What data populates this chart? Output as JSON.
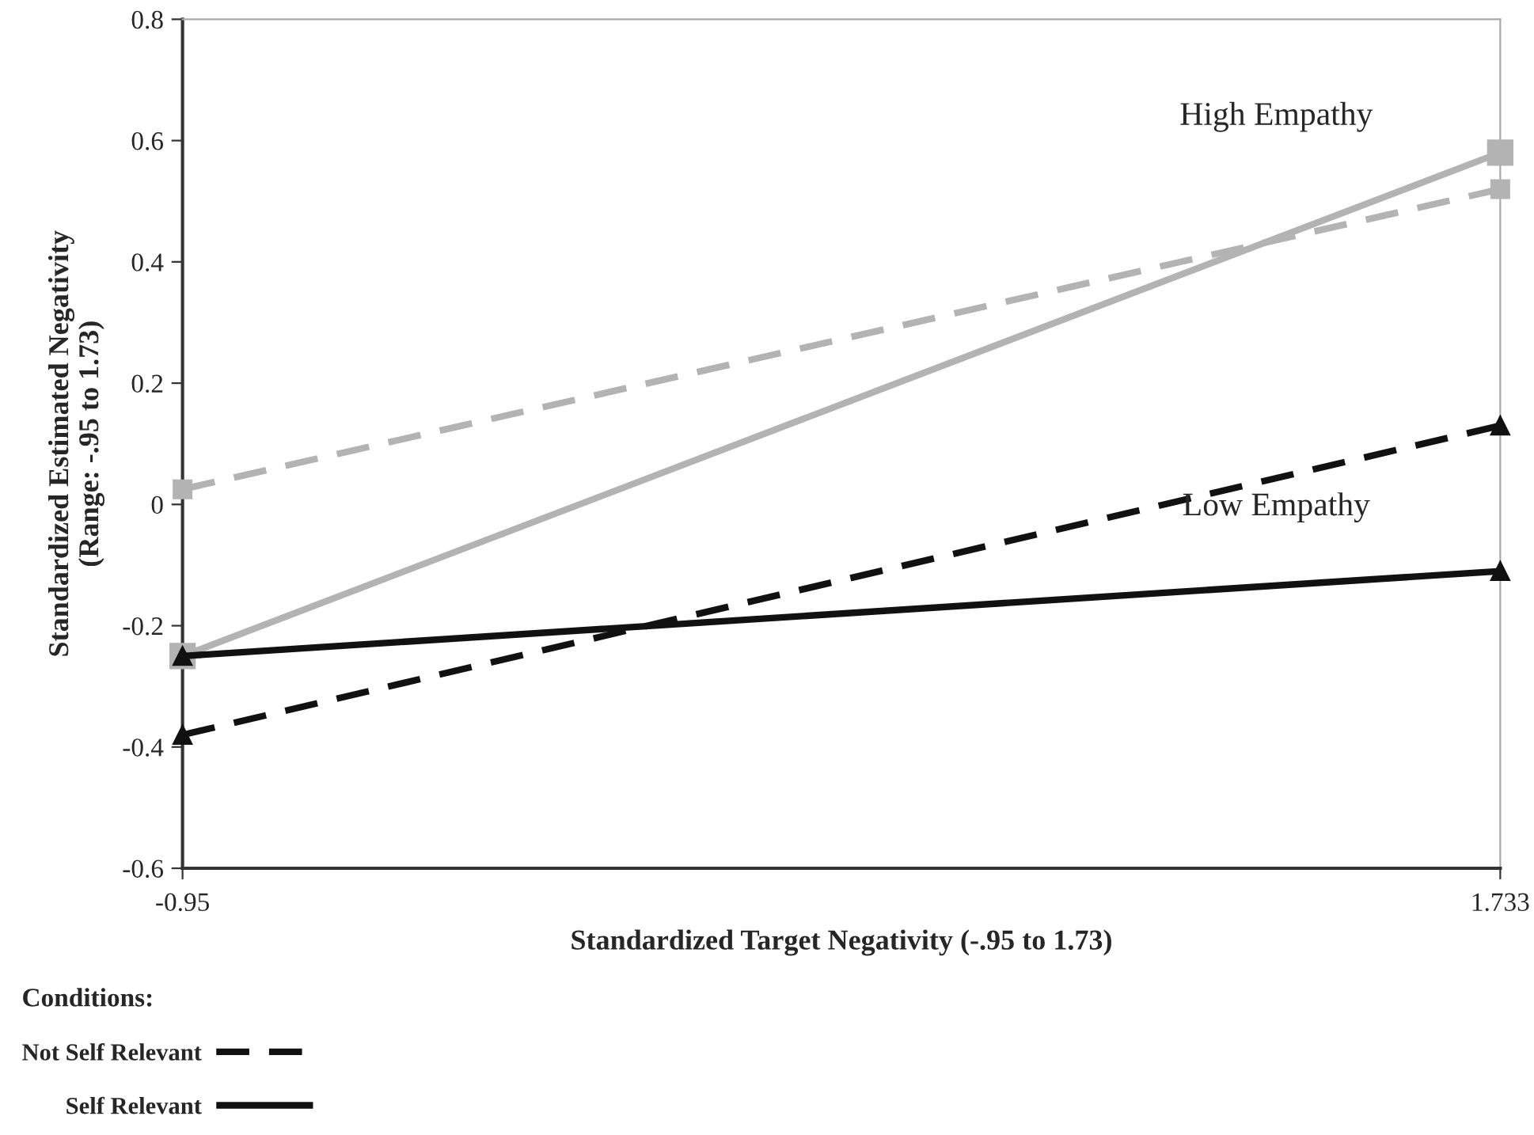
{
  "chart_data": {
    "type": "line",
    "xlabel": "Standardized Target Negativity (-.95 to 1.73)",
    "ylabel": "Standardized Estimated Negativity\n(Range: -.95 to 1.73)",
    "x": [
      -0.95,
      1.733
    ],
    "series": [
      {
        "color": "#b3b3b3",
        "values": [
          0.025,
          0.52
        ],
        "line_style": "dashed",
        "marker": "square"
      },
      {
        "color": "#b3b3b3",
        "values": [
          -0.25,
          0.58
        ],
        "line_style": "solid",
        "marker": "square"
      },
      {
        "name": "Not Self Relevant",
        "color": "#111111",
        "values": [
          -0.38,
          0.13
        ],
        "line_style": "dashed",
        "marker": "triangle"
      },
      {
        "name": "Self Relevant",
        "color": "#111111",
        "values": [
          -0.25,
          -0.11
        ],
        "line_style": "solid",
        "marker": "triangle"
      }
    ],
    "xlim": [
      -0.95,
      1.733
    ],
    "xticks": [
      -0.95,
      1.733
    ],
    "ylim": [
      -0.6,
      0.8
    ],
    "yticks": [
      -0.6,
      -0.4,
      -0.2,
      0,
      0.2,
      0.4,
      0.6,
      0.8
    ],
    "annotations": [
      "High Empathy",
      "Low Empathy"
    ],
    "legend": "bottom left",
    "legend_title": "Conditions:",
    "grid": false
  }
}
